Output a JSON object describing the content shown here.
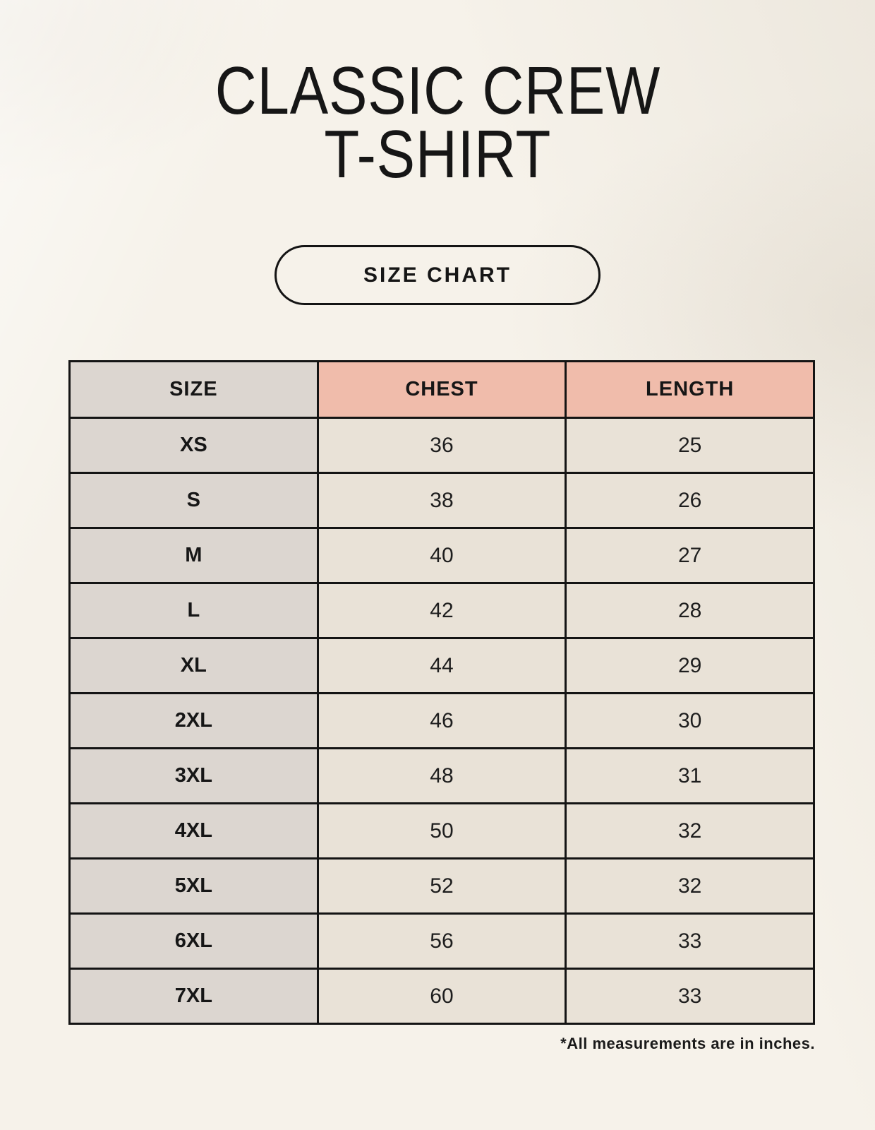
{
  "header": {
    "title_line1": "CLASSIC CREW",
    "title_line2": "T-SHIRT",
    "button_label": "SIZE CHART"
  },
  "footer": {
    "note": "*All measurements are in inches."
  },
  "colors": {
    "background": "#f6f2ea",
    "accent": "#f0bcab",
    "gray_col": "#dcd6d0",
    "cell": "#e9e2d7",
    "border": "#141414",
    "text": "#161616"
  },
  "chart_data": {
    "type": "table",
    "title": "CLASSIC CREW T-SHIRT",
    "subtitle": "SIZE CHART",
    "units": "inches",
    "columns": [
      "SIZE",
      "CHEST",
      "LENGTH"
    ],
    "rows": [
      [
        "XS",
        36,
        25
      ],
      [
        "S",
        38,
        26
      ],
      [
        "M",
        40,
        27
      ],
      [
        "L",
        42,
        28
      ],
      [
        "XL",
        44,
        29
      ],
      [
        "2XL",
        46,
        30
      ],
      [
        "3XL",
        48,
        31
      ],
      [
        "4XL",
        50,
        32
      ],
      [
        "5XL",
        52,
        32
      ],
      [
        "6XL",
        56,
        33
      ],
      [
        "7XL",
        60,
        33
      ]
    ],
    "note": "*All measurements are in inches."
  }
}
